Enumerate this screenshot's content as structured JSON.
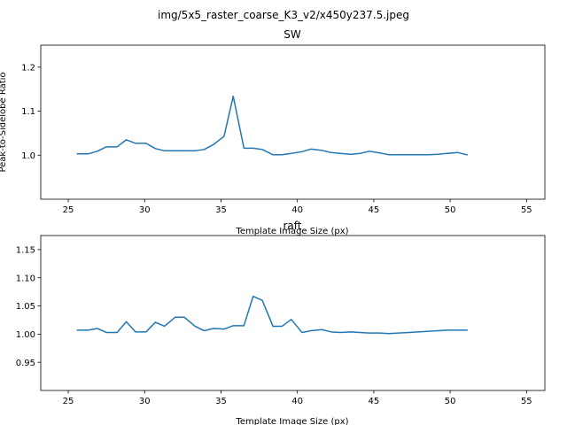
{
  "figure_title": "img/5x5_raster_coarse_K3_v2/x450y237.5.jpeg",
  "chart_data": [
    {
      "type": "line",
      "title": "SW",
      "xlabel": "Template Image Size (px)",
      "ylabel": "Peak-to-Sidelobe Ratio",
      "xlim": [
        23.2,
        56.2
      ],
      "ylim": [
        0.9,
        1.25
      ],
      "xticks": [
        25,
        30,
        35,
        40,
        45,
        50,
        55
      ],
      "yticks": [
        1.0,
        1.1,
        1.2
      ],
      "ytick_labels": [
        "1.0",
        "1.1",
        "1.2"
      ],
      "grid": false,
      "series": [
        {
          "color": "#1f77b4",
          "x": [
            25.6,
            26.3,
            26.9,
            27.5,
            28.2,
            28.8,
            29.4,
            30.1,
            30.7,
            31.3,
            32.0,
            32.6,
            33.3,
            33.9,
            34.5,
            35.2,
            35.8,
            36.5,
            37.1,
            37.7,
            38.4,
            39.0,
            39.6,
            40.3,
            40.9,
            41.6,
            42.2,
            42.8,
            43.5,
            44.1,
            44.7,
            45.4,
            46.0,
            46.6,
            47.3,
            47.9,
            48.6,
            49.2,
            49.8,
            50.5,
            51.1
          ],
          "y": [
            1.003,
            1.003,
            1.009,
            1.019,
            1.019,
            1.035,
            1.027,
            1.027,
            1.015,
            1.01,
            1.01,
            1.01,
            1.01,
            1.013,
            1.024,
            1.043,
            1.134,
            1.016,
            1.016,
            1.013,
            1.001,
            1.001,
            1.004,
            1.008,
            1.014,
            1.011,
            1.006,
            1.004,
            1.002,
            1.004,
            1.009,
            1.005,
            1.001,
            1.001,
            1.001,
            1.001,
            1.001,
            1.002,
            1.004,
            1.006,
            1.001
          ]
        }
      ]
    },
    {
      "type": "line",
      "title": "raft",
      "xlabel": "Template Image Size (px)",
      "ylabel": "",
      "xlim": [
        23.2,
        56.2
      ],
      "ylim": [
        0.9,
        1.175
      ],
      "xticks": [
        25,
        30,
        35,
        40,
        45,
        50,
        55
      ],
      "yticks": [
        0.95,
        1.0,
        1.05,
        1.1,
        1.15
      ],
      "ytick_labels": [
        "0.95",
        "1.00",
        "1.05",
        "1.10",
        "1.15"
      ],
      "grid": false,
      "series": [
        {
          "color": "#1f77b4",
          "x": [
            25.6,
            26.3,
            26.9,
            27.5,
            28.2,
            28.8,
            29.4,
            30.1,
            30.7,
            31.3,
            32.0,
            32.6,
            33.3,
            33.9,
            34.5,
            35.2,
            35.8,
            36.5,
            37.1,
            37.7,
            38.4,
            39.0,
            39.6,
            40.3,
            40.9,
            41.6,
            42.2,
            42.8,
            43.5,
            44.1,
            44.7,
            45.4,
            46.0,
            46.6,
            47.3,
            47.9,
            48.6,
            49.2,
            49.8,
            50.5,
            51.1
          ],
          "y": [
            1.007,
            1.007,
            1.01,
            1.003,
            1.003,
            1.022,
            1.004,
            1.004,
            1.021,
            1.014,
            1.03,
            1.03,
            1.014,
            1.006,
            1.01,
            1.009,
            1.015,
            1.015,
            1.067,
            1.06,
            1.014,
            1.014,
            1.026,
            1.003,
            1.006,
            1.008,
            1.004,
            1.003,
            1.004,
            1.003,
            1.002,
            1.002,
            1.001,
            1.002,
            1.003,
            1.004,
            1.005,
            1.006,
            1.007,
            1.007,
            1.007
          ]
        }
      ]
    }
  ]
}
